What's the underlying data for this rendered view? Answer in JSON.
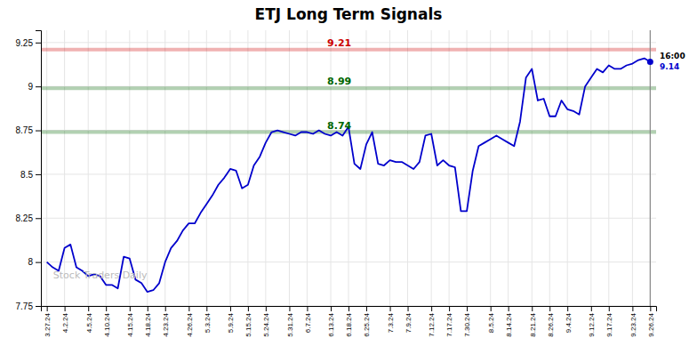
{
  "chart_data": {
    "type": "line",
    "title": "ETJ Long Term Signals",
    "color": "#0000cc",
    "grid": true,
    "ylim": [
      7.75,
      9.32
    ],
    "yticks": [
      7.75,
      8,
      8.25,
      8.5,
      8.75,
      9,
      9.25
    ],
    "categories": [
      "3.27.24",
      null,
      null,
      "4.2.24",
      null,
      null,
      null,
      "4.5.24",
      null,
      null,
      "4.10.24",
      null,
      null,
      null,
      "4.15.24",
      null,
      null,
      "4.18.24",
      null,
      null,
      "4.23.24",
      null,
      null,
      null,
      "4.26.24",
      null,
      null,
      "5.3.24",
      null,
      null,
      null,
      "5.9.24",
      null,
      null,
      "5.15.24",
      null,
      null,
      "5.24.24",
      null,
      null,
      null,
      "5.31.24",
      null,
      null,
      "6.7.24",
      null,
      null,
      null,
      "6.13.24",
      null,
      null,
      "6.18.24",
      null,
      null,
      "6.25.24",
      null,
      null,
      null,
      "7.3.24",
      null,
      null,
      "7.9.24",
      null,
      null,
      null,
      "7.12.24",
      null,
      null,
      "7.17.24",
      null,
      null,
      "7.30.24",
      null,
      null,
      null,
      "8.5.24",
      null,
      null,
      "8.14.24",
      null,
      null,
      null,
      "8.21.24",
      null,
      null,
      "8.26.24",
      null,
      null,
      "9.4.24",
      null,
      null,
      null,
      "9.12.24",
      null,
      null,
      "9.17.24",
      null,
      null,
      null,
      "9.23.24",
      null,
      null,
      "9.26.24"
    ],
    "values": [
      8.0,
      7.97,
      7.95,
      8.08,
      8.1,
      7.97,
      7.95,
      7.92,
      7.93,
      7.92,
      7.87,
      7.87,
      7.85,
      8.03,
      8.02,
      7.9,
      7.88,
      7.83,
      7.84,
      7.88,
      8.0,
      8.08,
      8.12,
      8.18,
      8.22,
      8.22,
      8.28,
      8.33,
      8.38,
      8.44,
      8.48,
      8.53,
      8.52,
      8.42,
      8.44,
      8.55,
      8.6,
      8.68,
      8.74,
      8.75,
      8.74,
      8.73,
      8.72,
      8.74,
      8.74,
      8.73,
      8.75,
      8.73,
      8.72,
      8.74,
      8.72,
      8.77,
      8.56,
      8.53,
      8.67,
      8.74,
      8.56,
      8.55,
      8.58,
      8.57,
      8.57,
      8.55,
      8.53,
      8.57,
      8.72,
      8.73,
      8.55,
      8.58,
      8.55,
      8.54,
      8.29,
      8.29,
      8.52,
      8.66,
      8.68,
      8.7,
      8.72,
      8.7,
      8.68,
      8.66,
      8.8,
      9.05,
      9.1,
      8.92,
      8.93,
      8.83,
      8.83,
      8.92,
      8.87,
      8.86,
      8.84,
      9.0,
      9.05,
      9.1,
      9.08,
      9.12,
      9.1,
      9.1,
      9.12,
      9.13,
      9.15,
      9.16,
      9.14
    ],
    "reference_lines": [
      {
        "value": 9.21,
        "color": "#cc0000"
      },
      {
        "value": 8.99,
        "color": "#006600"
      },
      {
        "value": 8.74,
        "color": "#006600"
      }
    ],
    "last_point": {
      "value": 9.14,
      "label": "16:00"
    },
    "watermark": "Stock Traders Daily"
  }
}
